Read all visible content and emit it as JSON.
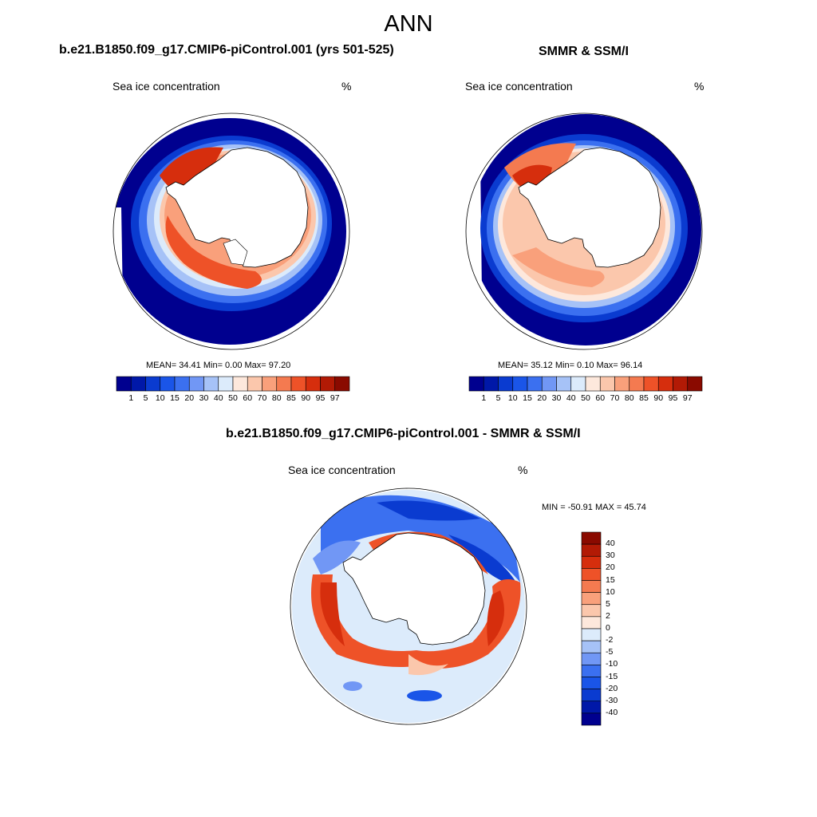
{
  "title": "ANN",
  "panel_model": {
    "title": "b.e21.B1850.f09_g17.CMIP6-piControl.001 (yrs 501-525)",
    "left_label": "Sea ice concentration",
    "right_label": "%",
    "stats": "MEAN=  34.41  Min=   0.00  Max=  97.20"
  },
  "panel_obs": {
    "title": "SMMR & SSM/I",
    "left_label": "Sea ice concentration",
    "right_label": "%",
    "stats": "MEAN=  35.12  Min=   0.10  Max=  96.14"
  },
  "panel_diff": {
    "title": "b.e21.B1850.f09_g17.CMIP6-piControl.001 - SMMR & SSM/I",
    "left_label": "Sea ice concentration",
    "right_label": "%",
    "stats": "MIN = -50.91 MAX =  45.74"
  },
  "colorbar_abs": {
    "colors": [
      "#00008f",
      "#0018a8",
      "#0a3bd0",
      "#1a55e8",
      "#3b70f0",
      "#7197f5",
      "#a6c2f7",
      "#dcebfb",
      "#fde8dc",
      "#fbc7ac",
      "#f9a07b",
      "#f47a50",
      "#ee5228",
      "#d62e0d",
      "#b21a05",
      "#8a0a00"
    ],
    "labels": [
      "1",
      "5",
      "10",
      "15",
      "20",
      "30",
      "40",
      "50",
      "60",
      "70",
      "80",
      "85",
      "90",
      "95",
      "97"
    ]
  },
  "colorbar_diff": {
    "colors": [
      "#8a0a00",
      "#b21a05",
      "#d62e0d",
      "#ee5228",
      "#f47a50",
      "#f9a07b",
      "#fbc7ac",
      "#fde8dc",
      "#dcebfb",
      "#a6c2f7",
      "#7197f5",
      "#3b70f0",
      "#1a55e8",
      "#0a3bd0",
      "#0018a8",
      "#00008f"
    ],
    "labels": [
      "40",
      "30",
      "20",
      "15",
      "10",
      "5",
      "2",
      "0",
      "-2",
      "-5",
      "-10",
      "-15",
      "-20",
      "-30",
      "-40"
    ]
  }
}
